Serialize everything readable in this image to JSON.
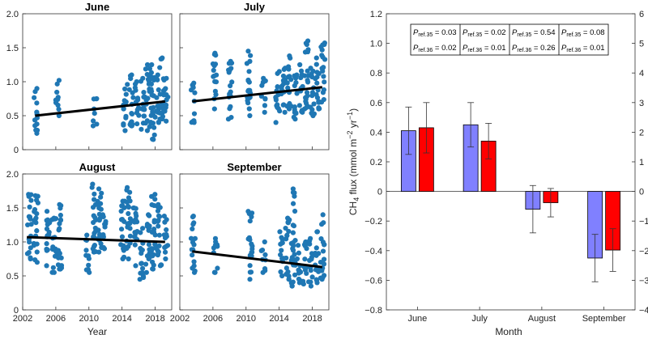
{
  "figure": {
    "left_xlabel": "Year",
    "right_xlabel": "Month"
  },
  "chart_data": [
    {
      "type": "scatter",
      "title": "June",
      "xlabel": "",
      "ylabel": "",
      "xlim": [
        2002,
        2020
      ],
      "ylim": [
        0,
        2.0
      ],
      "xticks": [
        2002,
        2006,
        2010,
        2014,
        2018
      ],
      "yticks": [
        0,
        0.5,
        1.0,
        1.5,
        2.0
      ],
      "yticklabels": [
        "0",
        "0.5",
        "1.0",
        "1.5",
        "2.0"
      ],
      "show_xticklabels": false,
      "show_yticklabels": true,
      "trend": {
        "x": [
          2003.5,
          2019.2
        ],
        "y": [
          0.5,
          0.71
        ]
      },
      "point_color": "#1f77b4",
      "clusters": [
        {
          "x": 2003.6,
          "min": 0.24,
          "max": 0.9
        },
        {
          "x": 2006.2,
          "min": 0.5,
          "max": 1.02
        },
        {
          "x": 2010.7,
          "min": 0.35,
          "max": 0.75
        },
        {
          "x": 2014.4,
          "min": 0.28,
          "max": 0.96
        },
        {
          "x": 2015.1,
          "min": 0.35,
          "max": 1.1
        },
        {
          "x": 2015.8,
          "min": 0.38,
          "max": 1.0
        },
        {
          "x": 2016.5,
          "min": 0.3,
          "max": 1.05
        },
        {
          "x": 2017.1,
          "min": 0.28,
          "max": 1.25
        },
        {
          "x": 2017.7,
          "min": 0.15,
          "max": 1.25
        },
        {
          "x": 2018.2,
          "min": 0.4,
          "max": 1.1
        },
        {
          "x": 2018.8,
          "min": 0.45,
          "max": 1.35
        },
        {
          "x": 2019.3,
          "min": 0.42,
          "max": 1.05
        }
      ]
    },
    {
      "type": "scatter",
      "title": "July",
      "xlabel": "",
      "ylabel": "",
      "xlim": [
        2002,
        2020
      ],
      "ylim": [
        0,
        2.0
      ],
      "xticks": [
        2002,
        2006,
        2010,
        2014,
        2018
      ],
      "yticks": [
        0,
        0.5,
        1.0,
        1.5,
        2.0
      ],
      "yticklabels": [
        "0",
        "0.5",
        "1.0",
        "1.5",
        "2.0"
      ],
      "show_xticklabels": false,
      "show_yticklabels": false,
      "trend": {
        "x": [
          2003.5,
          2019.2
        ],
        "y": [
          0.71,
          0.92
        ]
      },
      "point_color": "#1f77b4",
      "clusters": [
        {
          "x": 2003.6,
          "min": 0.4,
          "max": 0.98
        },
        {
          "x": 2006.2,
          "min": 0.6,
          "max": 1.42
        },
        {
          "x": 2008.1,
          "min": 0.45,
          "max": 1.3
        },
        {
          "x": 2010.3,
          "min": 0.5,
          "max": 1.45
        },
        {
          "x": 2012.1,
          "min": 0.55,
          "max": 1.05
        },
        {
          "x": 2013.8,
          "min": 0.4,
          "max": 1.15
        },
        {
          "x": 2014.5,
          "min": 0.55,
          "max": 1.2
        },
        {
          "x": 2015.2,
          "min": 0.6,
          "max": 1.38
        },
        {
          "x": 2015.9,
          "min": 0.45,
          "max": 1.1
        },
        {
          "x": 2016.6,
          "min": 0.55,
          "max": 1.25
        },
        {
          "x": 2017.3,
          "min": 0.6,
          "max": 1.6
        },
        {
          "x": 2018.0,
          "min": 0.5,
          "max": 1.2
        },
        {
          "x": 2018.6,
          "min": 0.6,
          "max": 1.35
        },
        {
          "x": 2019.3,
          "min": 0.7,
          "max": 1.57
        }
      ]
    },
    {
      "type": "scatter",
      "title": "August",
      "xlabel": "Year",
      "ylabel": "",
      "xlim": [
        2002,
        2020
      ],
      "ylim": [
        0,
        2.0
      ],
      "xticks": [
        2002,
        2006,
        2010,
        2014,
        2018
      ],
      "xticklabels": [
        "2002",
        "2006",
        "2010",
        "2014",
        "2018"
      ],
      "yticks": [
        0,
        0.5,
        1.0,
        1.5,
        2.0
      ],
      "yticklabels": [
        "0",
        "0.5",
        "1.0",
        "1.5",
        "2.0"
      ],
      "show_xticklabels": true,
      "show_yticklabels": true,
      "trend": {
        "x": [
          2002.5,
          2019.2
        ],
        "y": [
          1.07,
          1.0
        ]
      },
      "point_color": "#1f77b4",
      "clusters": [
        {
          "x": 2002.8,
          "min": 0.75,
          "max": 1.7
        },
        {
          "x": 2003.6,
          "min": 0.7,
          "max": 1.68
        },
        {
          "x": 2005.1,
          "min": 0.65,
          "max": 1.45
        },
        {
          "x": 2005.8,
          "min": 0.55,
          "max": 1.35
        },
        {
          "x": 2006.5,
          "min": 0.6,
          "max": 1.55
        },
        {
          "x": 2009.8,
          "min": 0.55,
          "max": 1.1
        },
        {
          "x": 2010.6,
          "min": 0.85,
          "max": 1.85
        },
        {
          "x": 2011.3,
          "min": 0.85,
          "max": 1.78
        },
        {
          "x": 2011.9,
          "min": 0.9,
          "max": 1.4
        },
        {
          "x": 2014.1,
          "min": 0.75,
          "max": 1.6
        },
        {
          "x": 2014.8,
          "min": 0.75,
          "max": 1.8
        },
        {
          "x": 2015.6,
          "min": 0.65,
          "max": 1.5
        },
        {
          "x": 2016.4,
          "min": 0.45,
          "max": 1.2
        },
        {
          "x": 2017.1,
          "min": 0.55,
          "max": 1.4
        },
        {
          "x": 2017.8,
          "min": 0.6,
          "max": 1.7
        },
        {
          "x": 2018.5,
          "min": 0.65,
          "max": 1.55
        },
        {
          "x": 2019.3,
          "min": 0.75,
          "max": 1.38
        }
      ]
    },
    {
      "type": "scatter",
      "title": "September",
      "xlabel": "Year",
      "ylabel": "",
      "xlim": [
        2002,
        2020
      ],
      "ylim": [
        0,
        2.0
      ],
      "xticks": [
        2002,
        2006,
        2010,
        2014,
        2018
      ],
      "xticklabels": [
        "2002",
        "2006",
        "2010",
        "2014",
        "2018"
      ],
      "yticks": [
        0,
        0.5,
        1.0,
        1.5,
        2.0
      ],
      "yticklabels": [
        "0",
        "0.5",
        "1.0",
        "1.5",
        "2.0"
      ],
      "show_xticklabels": true,
      "show_yticklabels": false,
      "trend": {
        "x": [
          2003.5,
          2019.2
        ],
        "y": [
          0.86,
          0.63
        ]
      },
      "point_color": "#1f77b4",
      "clusters": [
        {
          "x": 2003.6,
          "min": 0.55,
          "max": 1.38
        },
        {
          "x": 2006.3,
          "min": 0.55,
          "max": 1.05
        },
        {
          "x": 2010.5,
          "min": 0.45,
          "max": 1.45
        },
        {
          "x": 2012.1,
          "min": 0.55,
          "max": 1.0
        },
        {
          "x": 2014.3,
          "min": 0.5,
          "max": 1.15
        },
        {
          "x": 2015.0,
          "min": 0.45,
          "max": 1.35
        },
        {
          "x": 2015.7,
          "min": 0.35,
          "max": 1.78
        },
        {
          "x": 2016.4,
          "min": 0.4,
          "max": 0.95
        },
        {
          "x": 2017.1,
          "min": 0.38,
          "max": 1.0
        },
        {
          "x": 2017.8,
          "min": 0.35,
          "max": 1.05
        },
        {
          "x": 2018.5,
          "min": 0.4,
          "max": 1.15
        },
        {
          "x": 2019.2,
          "min": 0.45,
          "max": 1.4
        }
      ]
    },
    {
      "type": "bar",
      "title": "",
      "xlabel": "Month",
      "ylabel": "CH4 flux (mmol m-2 yr-1)",
      "ylabel_parts": {
        "pre": "CH",
        "sub": "4",
        "mid": " flux (mmol m",
        "sup1": "−2",
        "mid2": " yr",
        "sup2": "−1",
        "post": ")"
      },
      "categories": [
        "June",
        "July",
        "August",
        "September"
      ],
      "ylim": [
        -0.8,
        1.2
      ],
      "yticks": [
        -0.8,
        -0.6,
        -0.4,
        -0.2,
        0,
        0.2,
        0.4,
        0.6,
        0.8,
        1.0,
        1.2
      ],
      "yticklabels": [
        "−0.8",
        "−0.6",
        "−0.4",
        "−0.2",
        "0",
        "0.2",
        "0.4",
        "0.6",
        "0.8",
        "1.0",
        "1.2"
      ],
      "right_ylim": [
        -4,
        6
      ],
      "right_yticks": [
        -4,
        -3,
        -2,
        -1,
        0,
        1,
        2,
        3,
        4,
        5,
        6
      ],
      "right_yticklabels": [
        "−4",
        "−3",
        "−2",
        "−1",
        "0",
        "1",
        "2",
        "3",
        "4",
        "5",
        "6"
      ],
      "series": [
        {
          "color": "#8080ff",
          "axis": "left",
          "values": [
            0.41,
            0.45,
            -0.12,
            -0.45
          ],
          "err": [
            0.16,
            0.15,
            0.16,
            0.16
          ]
        },
        {
          "color": "#ff0000",
          "axis": "right",
          "values": [
            2.15,
            1.7,
            -0.38,
            -1.98
          ],
          "err": [
            0.85,
            0.6,
            0.48,
            0.72
          ]
        }
      ],
      "p_table": [
        {
          "r35": "0.03",
          "r36": "0.02"
        },
        {
          "r35": "0.02",
          "r36": "0.01"
        },
        {
          "r35": "0.54",
          "r36": "0.26"
        },
        {
          "r35": "0.08",
          "r36": "0.01"
        }
      ],
      "p_symbol": "P",
      "p_sub35": "ref.35",
      "p_sub36": "ref.36",
      "p_eq": " = "
    }
  ]
}
